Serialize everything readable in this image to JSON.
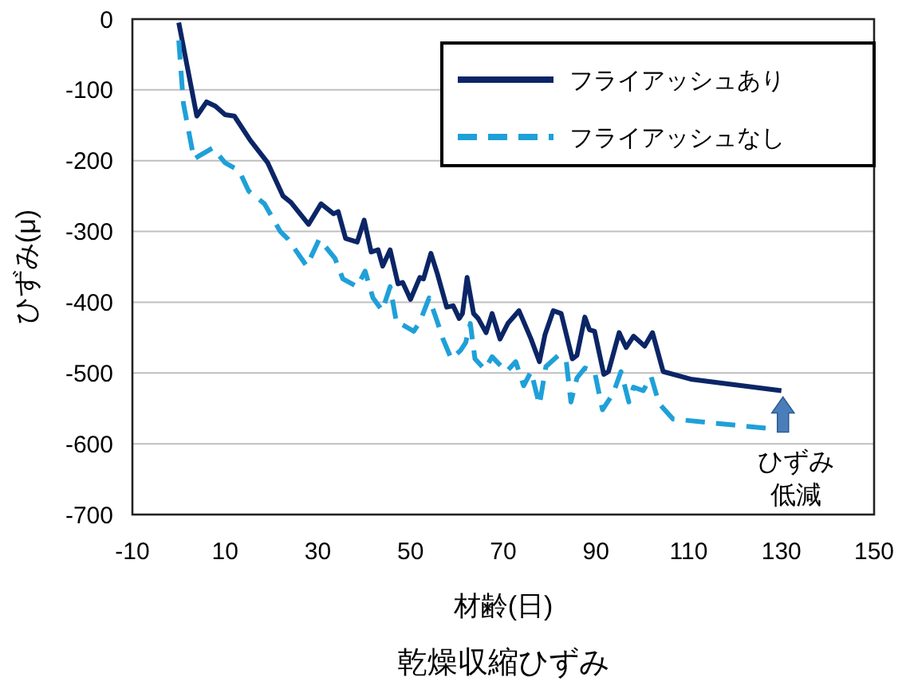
{
  "chart_data": {
    "type": "line",
    "title": "乾燥収縮ひずみ",
    "xlabel": "材齢(日)",
    "ylabel": "ひずみ(μ)",
    "xlim": [
      -10,
      150
    ],
    "xticks": [
      -10,
      10,
      30,
      50,
      70,
      90,
      110,
      130,
      150
    ],
    "ylim": [
      -700,
      0
    ],
    "yticks": [
      -700,
      -600,
      -500,
      -400,
      -300,
      -200,
      -100,
      0
    ],
    "grid": "y",
    "legend": "top right",
    "annotations": [
      "ひずみ",
      "低減"
    ],
    "series": [
      {
        "name": "フライアッシュあり",
        "color": "#0b2566",
        "line_style": "solid",
        "x": [
          0,
          3.9,
          6,
          7.9,
          10,
          12,
          15.4,
          19.2,
          22.5,
          24.2,
          28,
          30.7,
          33.4,
          34.4,
          36,
          38.5,
          40,
          41.5,
          43,
          44,
          45.6,
          47.3,
          48.3,
          50,
          52,
          52.8,
          54.4,
          55.8,
          57.8,
          59.2,
          60.5,
          61.2,
          62.2,
          63.6,
          64.6,
          66.3,
          67.6,
          69.3,
          71,
          73.4,
          74.7,
          76,
          77.8,
          79,
          80.8,
          82.5,
          84.9,
          85.9,
          87.6,
          88.6,
          89.7,
          91.7,
          92.7,
          95,
          96.5,
          98.1,
          100.5,
          102.2,
          104.5,
          110.7,
          130
        ],
        "values": [
          -5,
          -137,
          -117,
          -123,
          -135,
          -137,
          -171,
          -203,
          -250,
          -259,
          -290,
          -261,
          -275,
          -272,
          -310,
          -315,
          -284,
          -329,
          -326,
          -349,
          -326,
          -374,
          -372,
          -396,
          -365,
          -367,
          -331,
          -360,
          -407,
          -405,
          -423,
          -416,
          -365,
          -416,
          -423,
          -443,
          -416,
          -452,
          -430,
          -412,
          -432,
          -452,
          -484,
          -446,
          -412,
          -416,
          -480,
          -475,
          -421,
          -439,
          -441,
          -502,
          -498,
          -443,
          -464,
          -448,
          -462,
          -443,
          -498,
          -509,
          -525
        ]
      },
      {
        "name": "フライアッシュなし",
        "color": "#1fa0d8",
        "line_style": "dashed",
        "x": [
          0,
          1,
          3.3,
          4.2,
          7.3,
          10,
          13,
          15.1,
          18.5,
          21.9,
          23.6,
          27.6,
          30.3,
          31.7,
          33.7,
          35.4,
          38.5,
          40.2,
          41.9,
          43.9,
          45.6,
          47,
          48.3,
          50.7,
          52,
          54,
          55.8,
          57,
          58.8,
          60.8,
          61.9,
          62.9,
          63.9,
          66,
          67.6,
          68.9,
          70.7,
          72.7,
          74.4,
          76,
          77.8,
          79.2,
          81.9,
          83.6,
          84.6,
          85.9,
          87.6,
          89.7,
          91.4,
          93.7,
          95.4,
          97.1,
          98.1,
          100.2,
          101.9,
          103.6,
          106.6,
          126.6
        ],
        "values": [
          -30,
          -119,
          -198,
          -194,
          -182,
          -203,
          -214,
          -243,
          -261,
          -300,
          -311,
          -349,
          -311,
          -322,
          -338,
          -367,
          -378,
          -356,
          -394,
          -412,
          -378,
          -430,
          -432,
          -441,
          -428,
          -394,
          -428,
          -452,
          -480,
          -468,
          -457,
          -430,
          -480,
          -495,
          -477,
          -486,
          -498,
          -484,
          -518,
          -498,
          -545,
          -491,
          -475,
          -484,
          -541,
          -507,
          -493,
          -498,
          -552,
          -529,
          -498,
          -541,
          -520,
          -525,
          -505,
          -543,
          -565,
          -578
        ]
      }
    ]
  }
}
